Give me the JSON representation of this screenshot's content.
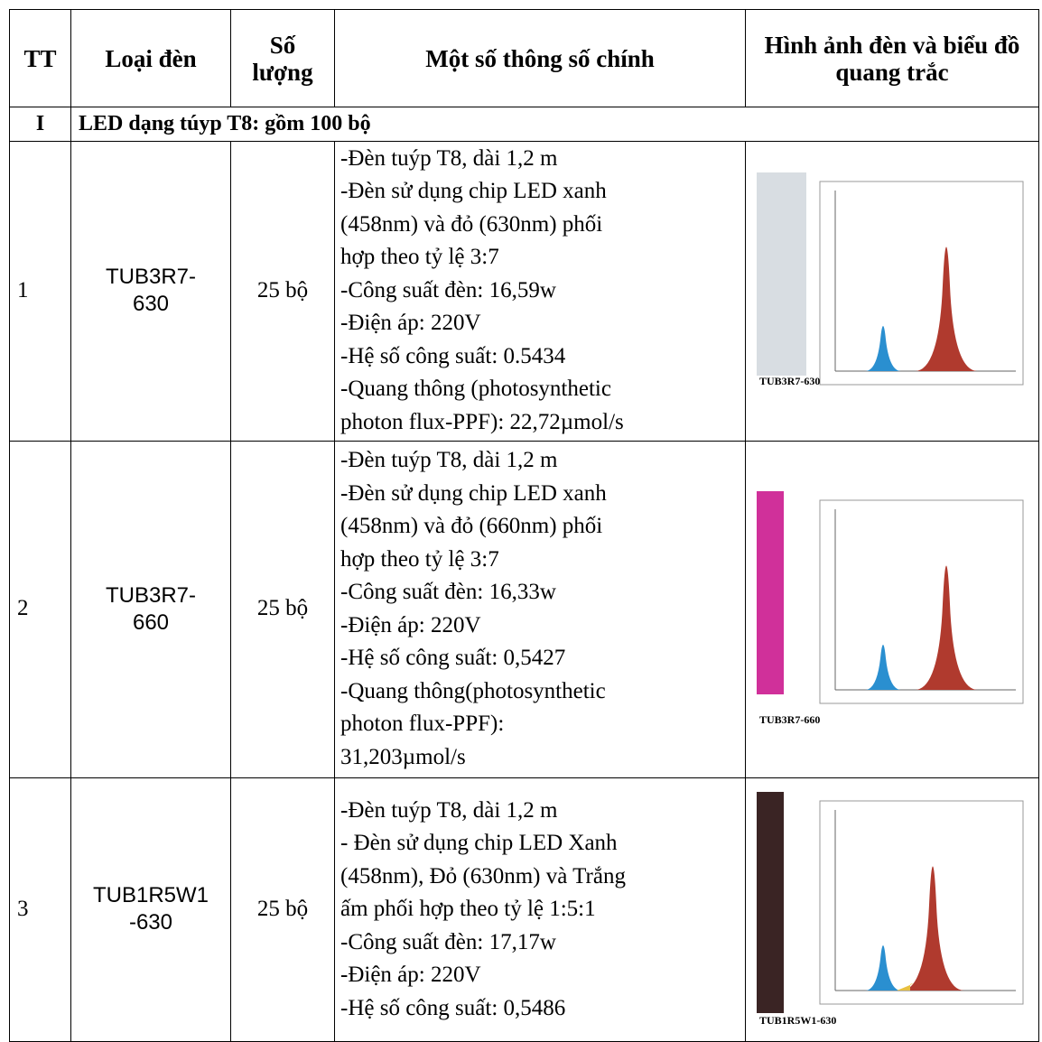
{
  "table": {
    "header": [
      "TT",
      "Loại đèn",
      "Số lượng",
      "Một số thông số chính",
      "Hình ảnh đèn và biểu đồ quang trắc"
    ],
    "section": {
      "number": "I",
      "title": "LED dạng túyp T8: gồm 100 bộ"
    },
    "rows": [
      {
        "tt": "1",
        "name": [
          "TUB3R7-",
          "630"
        ],
        "quantity": "25 bộ",
        "specs": [
          "-Đèn tuýp T8, dài 1,2 m",
          "-Đèn sử dụng chip LED xanh",
          "(458nm) và đỏ (630nm) phối",
          "hợp theo tỷ lệ 3:7",
          "-Công suất đèn: 16,59w",
          "-Điện áp: 220V",
          "-Hệ số công suất: 0.5434",
          "-Quang thông (photosynthetic",
          "photon flux-PPF): 22,72µmol/s"
        ],
        "image_caption": "TUB3R7-630"
      },
      {
        "tt": "2",
        "name": [
          "TUB3R7-",
          "660"
        ],
        "quantity": "25 bộ",
        "specs": [
          "-Đèn tuýp T8, dài 1,2 m",
          "-Đèn sử dụng chip LED xanh",
          "(458nm) và đỏ (660nm) phối",
          "hợp theo tỷ lệ 3:7",
          "-Công suất đèn: 16,33w",
          "-Điện áp: 220V",
          "-Hệ số công suất: 0,5427",
          "-Quang thông(photosynthetic",
          "photon flux-PPF):",
          "31,203µmol/s"
        ],
        "image_caption": "TUB3R7-660"
      },
      {
        "tt": "3",
        "name": [
          "TUB1R5W1",
          "-630"
        ],
        "quantity": "25 bộ",
        "specs": [
          "-Đèn tuýp T8, dài 1,2 m",
          "- Đèn sử dụng chip LED Xanh",
          "(458nm), Đỏ (630nm) và Trắng",
          "ấm phối hợp theo tỷ lệ 1:5:1",
          "-Công suất đèn: 17,17w",
          "-Điện áp: 220V",
          "-Hệ số công suất: 0,5486"
        ],
        "image_caption": "TUB1R5W1-630"
      }
    ]
  }
}
